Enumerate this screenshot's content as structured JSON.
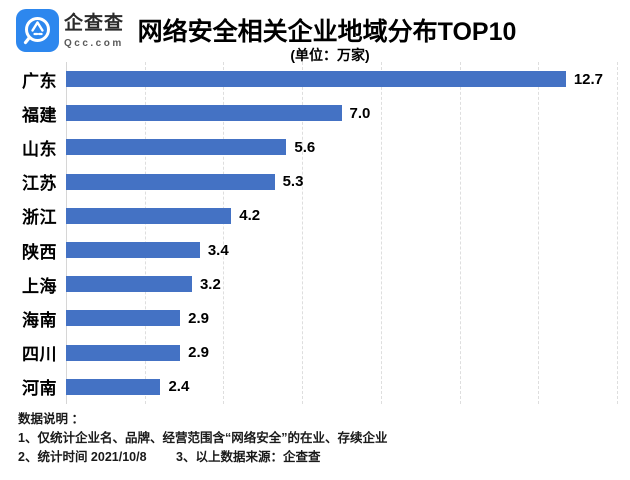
{
  "header": {
    "brand": {
      "name": "企查查",
      "domain": "Qcc.com"
    },
    "title": "网络安全相关企业地域分布TOP10",
    "subtitle": "(单位：万家)"
  },
  "chart_data": {
    "type": "bar",
    "orientation": "horizontal",
    "title": "网络安全相关企业地域分布TOP10",
    "unit_label": "(单位：万家)",
    "categories": [
      "广东",
      "福建",
      "山东",
      "江苏",
      "浙江",
      "陕西",
      "上海",
      "海南",
      "四川",
      "河南"
    ],
    "values": [
      12.7,
      7.0,
      5.6,
      5.3,
      4.2,
      3.4,
      3.2,
      2.9,
      2.9,
      2.4
    ],
    "value_labels": [
      "12.7",
      "7.0",
      "5.6",
      "5.3",
      "4.2",
      "3.4",
      "3.2",
      "2.9",
      "2.9",
      "2.4"
    ],
    "xlim": [
      0,
      14
    ],
    "gridline_step": 2,
    "grid": true,
    "legend": "none",
    "bar_color": "#4472C4"
  },
  "footer": {
    "heading": "数据说明 ：",
    "note1": "1、仅统计企业名、品牌、经营范围含“网络安全”的在业、存续企业",
    "note2": "2、统计时间 2021/10/8",
    "note3": "3、以上数据来源：企查查"
  },
  "colors": {
    "bar": "#4472C4",
    "logo_blue": "#2D87EE",
    "gridline": "#dedede"
  }
}
